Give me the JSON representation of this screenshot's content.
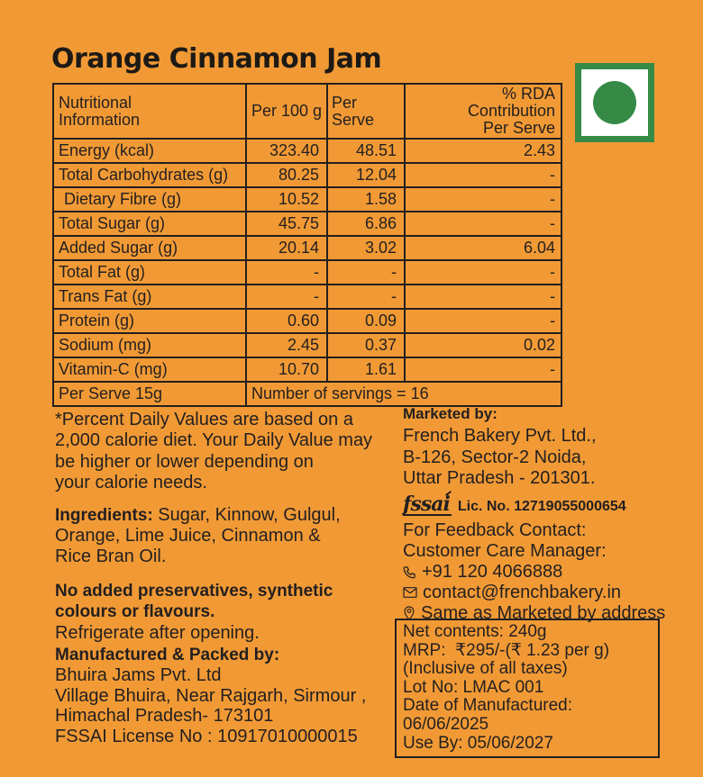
{
  "title": "Orange Cinnamon Jam",
  "colors": {
    "background_orange": "#F19A35",
    "ink": "#231F20",
    "veg_mark_green": "#358A46",
    "veg_mark_white": "#FFFFFF"
  },
  "veg_mark": {
    "name": "vegetarian-mark",
    "shape": "green circle in white square with green border"
  },
  "table": {
    "headers": [
      "Nutritional\nInformation",
      "Per 100 g",
      "Per Serve",
      "% RDA\nContribution\nPer Serve"
    ],
    "rows": [
      {
        "label": "Energy (kcal)",
        "per_100g": "323.40",
        "per_serve": "48.51",
        "rda": "2.43",
        "indent": false
      },
      {
        "label": "Total Carbohydrates (g)",
        "per_100g": "80.25",
        "per_serve": "12.04",
        "rda": "-",
        "indent": false
      },
      {
        "label": "Dietary Fibre (g)",
        "per_100g": "10.52",
        "per_serve": "1.58",
        "rda": "-",
        "indent": true
      },
      {
        "label": "Total Sugar (g)",
        "per_100g": "45.75",
        "per_serve": "6.86",
        "rda": "-",
        "indent": false
      },
      {
        "label": "Added Sugar (g)",
        "per_100g": "20.14",
        "per_serve": "3.02",
        "rda": "6.04",
        "indent": false
      },
      {
        "label": "Total Fat (g)",
        "per_100g": "-",
        "per_serve": "-",
        "rda": "-",
        "indent": false
      },
      {
        "label": "Trans Fat (g)",
        "per_100g": "-",
        "per_serve": "-",
        "rda": "-",
        "indent": false
      },
      {
        "label": "Protein (g)",
        "per_100g": "0.60",
        "per_serve": "0.09",
        "rda": "-",
        "indent": false
      },
      {
        "label": "Sodium (mg)",
        "per_100g": "2.45",
        "per_serve": "0.37",
        "rda": "0.02",
        "indent": false
      },
      {
        "label": "Vitamin-C (mg)",
        "per_100g": "10.70",
        "per_serve": "1.61",
        "rda": "-",
        "indent": false
      }
    ],
    "footer": {
      "label": "Per Serve 15g",
      "note": "Number of servings = 16"
    }
  },
  "left_column": {
    "daily_value_note": "*Percent Daily Values are based on a\n2,000 calorie diet. Your Daily Value may\nbe higher or lower depending on\nyour calorie needs.",
    "ingredients_label": "Ingredients:",
    "ingredients_text": " Sugar, Kinnow, Gulgul,\nOrange, Lime Juice, Cinnamon &\nRice Bran Oil.",
    "no_additives": "No added preservatives, synthetic\ncolours or flavours.",
    "refrigerate": "Refrigerate after opening.",
    "manufactured_label": "Manufactured & Packed by:",
    "manufacturer_address": "Bhuira Jams Pvt. Ltd\nVillage Bhuira, Near Rajgarh, Sirmour ,\nHimachal Pradesh- 173101\nFSSAI License No : 10917010000015"
  },
  "right_column": {
    "marketed_label": "Marketed by:",
    "marketer_address": "French Bakery Pvt. Ltd.,\nB-126, Sector-2 Noida,\nUttar Pradesh - 201301.",
    "fssai_logo": "fssai",
    "fssai_license": "Lic. No. 12719055000654",
    "feedback_heading": "For Feedback Contact:",
    "feedback_subheading": "Customer Care Manager:",
    "phone": "+91 120 4066888",
    "email": "contact@frenchbakery.in",
    "address_note": "Same as Marketed by address",
    "box": {
      "net_contents": "Net contents: 240g",
      "mrp": "MRP:  ₹295/-(₹ 1.23 per g)",
      "taxes": "(Inclusive of all taxes)",
      "lot": "Lot No: LMAC 001",
      "mfg_date": "Date of Manufactured: 06/06/2025",
      "use_by": "Use By: 05/06/2027"
    }
  }
}
